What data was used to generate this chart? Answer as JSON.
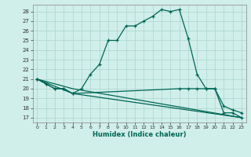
{
  "xlabel": "Humidex (Indice chaleur)",
  "bg_color": "#d0eeea",
  "grid_color": "#b0d8d0",
  "line_color": "#006655",
  "xlim": [
    -0.5,
    23.5
  ],
  "ylim": [
    16.5,
    28.7
  ],
  "xticks": [
    0,
    1,
    2,
    3,
    4,
    5,
    6,
    7,
    8,
    9,
    10,
    11,
    12,
    13,
    14,
    15,
    16,
    17,
    18,
    19,
    20,
    21,
    22,
    23
  ],
  "yticks": [
    17,
    18,
    19,
    20,
    21,
    22,
    23,
    24,
    25,
    26,
    27,
    28
  ],
  "line1_x": [
    0,
    1,
    2,
    3,
    4,
    5,
    6,
    7,
    8,
    9,
    10,
    11,
    12,
    13,
    14,
    15,
    16,
    17,
    18,
    19,
    20,
    21,
    22,
    23
  ],
  "line1_y": [
    21,
    20.5,
    20,
    20,
    19.5,
    20,
    21.5,
    22.5,
    25,
    25,
    26.5,
    26.5,
    27,
    27.5,
    28.2,
    28,
    28.2,
    25.2,
    21.5,
    20,
    20,
    17.5,
    17.5,
    17
  ],
  "line2_x": [
    0,
    1,
    2,
    3,
    4,
    16,
    17,
    18,
    19,
    20,
    21,
    22,
    23
  ],
  "line2_y": [
    21,
    20.5,
    20,
    20,
    19.5,
    20,
    20,
    20,
    20,
    20,
    18.2,
    17.8,
    17.5
  ],
  "line3_x": [
    0,
    4,
    23
  ],
  "line3_y": [
    21,
    20,
    17
  ],
  "line4_x": [
    0,
    4,
    23
  ],
  "line4_y": [
    21,
    19.5,
    17
  ]
}
